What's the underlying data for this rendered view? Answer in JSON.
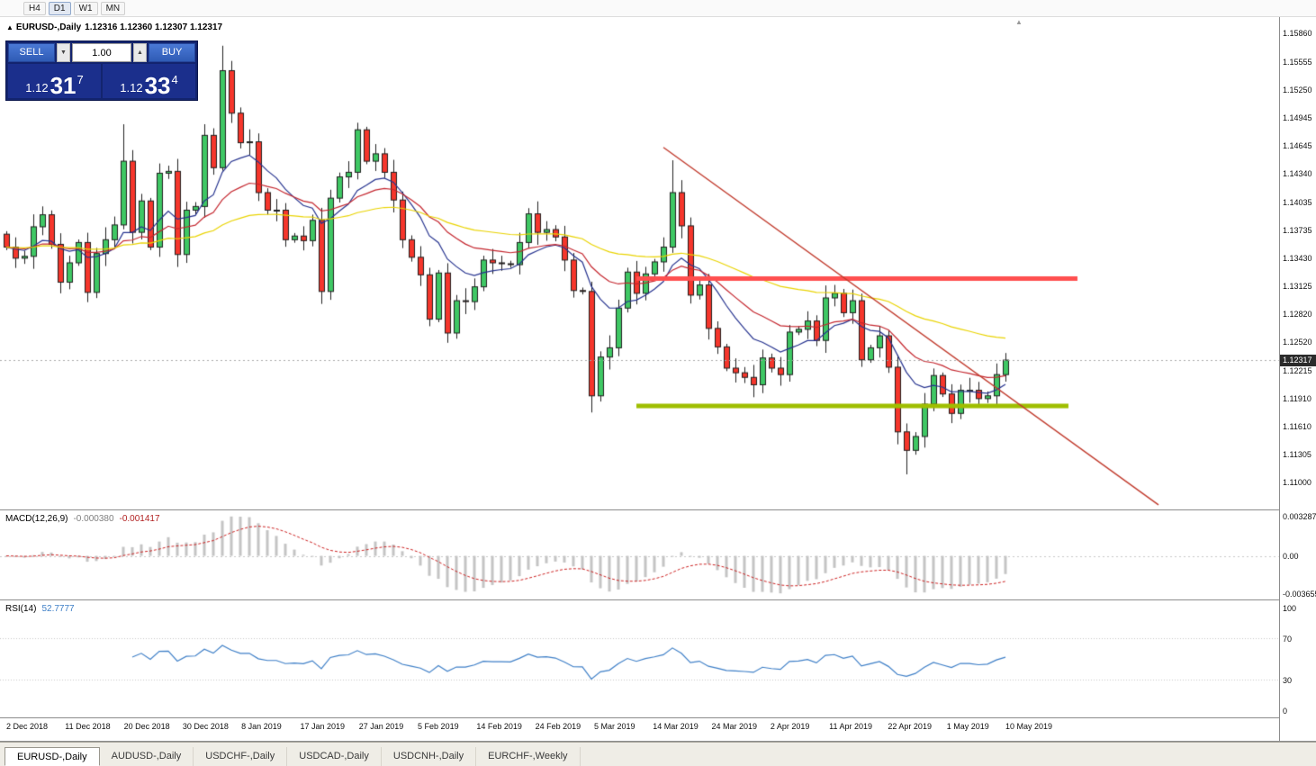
{
  "toolbar": {
    "periods": [
      "H4",
      "D1",
      "W1",
      "MN"
    ],
    "active": "D1"
  },
  "chart": {
    "symbol": "EURUSD-,Daily",
    "ohlc": "1.12316 1.12360 1.12307 1.12317"
  },
  "trade_panel": {
    "sell_label": "SELL",
    "buy_label": "BUY",
    "volume": "1.00",
    "sell_price_main": "1.12",
    "sell_price_pips": "31",
    "sell_price_sup": "7",
    "buy_price_main": "1.12",
    "buy_price_pips": "33",
    "buy_price_sup": "4"
  },
  "price_axis": {
    "labels": [
      "1.15860",
      "1.15555",
      "1.15250",
      "1.14945",
      "1.14645",
      "1.14340",
      "1.14035",
      "1.13735",
      "1.13430",
      "1.13125",
      "1.12820",
      "1.12520",
      "1.12215",
      "1.11910",
      "1.11610",
      "1.11305",
      "1.11000"
    ],
    "current": "1.12317"
  },
  "date_axis": [
    "2 Dec 2018",
    "11 Dec 2018",
    "20 Dec 2018",
    "30 Dec 2018",
    "8 Jan 2019",
    "17 Jan 2019",
    "27 Jan 2019",
    "5 Feb 2019",
    "14 Feb 2019",
    "24 Feb 2019",
    "5 Mar 2019",
    "14 Mar 2019",
    "24 Mar 2019",
    "2 Apr 2019",
    "11 Apr 2019",
    "22 Apr 2019",
    "1 May 2019",
    "10 May 2019"
  ],
  "indicators": {
    "macd": {
      "label": "MACD(12,26,9)",
      "main_value": "-0.000380",
      "signal_value": "-0.001417",
      "scale": [
        "0.003287",
        "0.00",
        "-0.003655"
      ],
      "fast": 12,
      "slow": 26,
      "signal": 9
    },
    "rsi": {
      "label": "RSI(14)",
      "value": "52.7777",
      "scale": [
        "100",
        "70",
        "30",
        "0"
      ],
      "levels": [
        70,
        30
      ],
      "period": 14
    }
  },
  "tabs": [
    {
      "label": "EURUSD-,Daily",
      "active": true
    },
    {
      "label": "AUDUSD-,Daily",
      "active": false
    },
    {
      "label": "USDCHF-,Daily",
      "active": false
    },
    {
      "label": "USDCAD-,Daily",
      "active": false
    },
    {
      "label": "USDCNH-,Daily",
      "active": false
    },
    {
      "label": "EURCHF-,Weekly",
      "active": false
    }
  ],
  "chart_data": {
    "type": "candlestick",
    "symbol": "EURUSD",
    "timeframe": "Daily",
    "bid": 1.12317,
    "ylim": [
      1.107,
      1.1603
    ],
    "first_open": 1.1368,
    "default_wick": 0.0013,
    "closes": [
      1.1354,
      1.1342,
      1.1344,
      1.1376,
      1.1389,
      1.1357,
      1.1316,
      1.1337,
      1.1359,
      1.1305,
      1.1347,
      1.1362,
      1.1378,
      1.1447,
      1.137,
      1.1404,
      1.1354,
      1.1434,
      1.1436,
      1.1346,
      1.1394,
      1.1398,
      1.1475,
      1.144,
      1.1545,
      1.1499,
      1.1467,
      1.1468,
      1.1413,
      1.1394,
      1.1394,
      1.1362,
      1.1366,
      1.1361,
      1.1383,
      1.1306,
      1.1407,
      1.143,
      1.1435,
      1.1481,
      1.1447,
      1.1455,
      1.1435,
      1.1405,
      1.1362,
      1.1343,
      1.1324,
      1.1276,
      1.1326,
      1.1261,
      1.1296,
      1.1295,
      1.1311,
      1.134,
      1.1337,
      1.1336,
      1.1335,
      1.1359,
      1.139,
      1.137,
      1.1373,
      1.1365,
      1.134,
      1.1307,
      1.1306,
      1.1193,
      1.1235,
      1.1245,
      1.1288,
      1.1327,
      1.1304,
      1.1325,
      1.1338,
      1.1354,
      1.1413,
      1.1377,
      1.1302,
      1.1313,
      1.1266,
      1.1246,
      1.1223,
      1.1218,
      1.1213,
      1.1205,
      1.1234,
      1.1223,
      1.1216,
      1.1262,
      1.1265,
      1.1274,
      1.1253,
      1.1299,
      1.1304,
      1.1283,
      1.1296,
      1.1232,
      1.1245,
      1.1258,
      1.1224,
      1.1154,
      1.1134,
      1.1149,
      1.1184,
      1.1215,
      1.1195,
      1.1174,
      1.1199,
      1.1199,
      1.119,
      1.1193,
      1.1216,
      1.12317
    ],
    "wick_overrides": {
      "13": {
        "h": 1.1487
      },
      "24": {
        "h": 1.1572
      },
      "65": {
        "l": 1.1175
      },
      "74": {
        "h": 1.1448
      },
      "100": {
        "l": 1.1108
      }
    },
    "moving_averages": [
      {
        "period": 10,
        "color": "#26338F"
      },
      {
        "period": 21,
        "color": "#C4262E"
      },
      {
        "period": 55,
        "color": "#E9D300"
      }
    ],
    "objects": {
      "resistance": {
        "price": 1.132,
        "from": 70,
        "to": 119,
        "width": 5,
        "color": "#FF4F4F"
      },
      "support": {
        "price": 1.1182,
        "from": 70,
        "to": 118,
        "width": 5,
        "color": "#9FBE00"
      },
      "trendline": {
        "from_index": 73,
        "from_price": 1.1462,
        "to_index": 128,
        "to_price": 1.1075,
        "width": 1.4,
        "color": "#C0392B"
      }
    },
    "colors": {
      "up": "#3FC764",
      "down": "#F5362C",
      "outline": "#1F1F1F",
      "macd_hist": "#C4C4C4",
      "macd_signal": "#CC2222",
      "rsi_line": "#3E7FC7",
      "bid_line": "#A8A8A8",
      "levels": "#C6C6C6"
    }
  }
}
